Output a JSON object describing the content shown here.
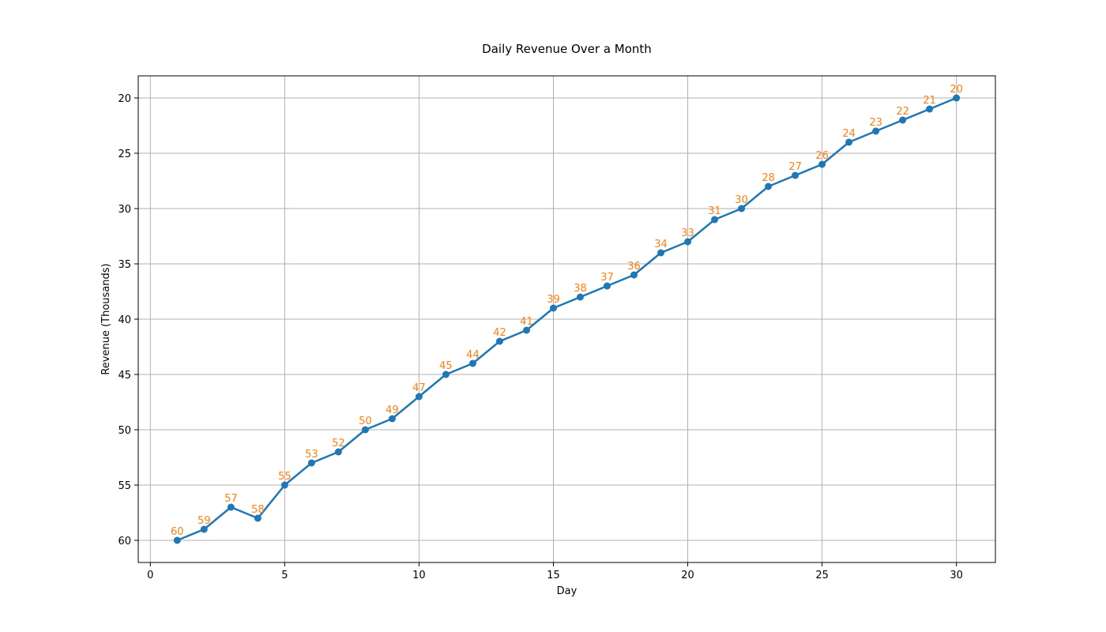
{
  "chart_data": {
    "type": "line",
    "title": "Daily Revenue Over a Month",
    "xlabel": "Day",
    "ylabel": "Revenue (Thousands)",
    "x": [
      1,
      2,
      3,
      4,
      5,
      6,
      7,
      8,
      9,
      10,
      11,
      12,
      13,
      14,
      15,
      16,
      17,
      18,
      19,
      20,
      21,
      22,
      23,
      24,
      25,
      26,
      27,
      28,
      29,
      30
    ],
    "series": [
      {
        "values": [
          60,
          59,
          57,
          58,
          55,
          53,
          52,
          50,
          49,
          47,
          45,
          44,
          42,
          41,
          39,
          38,
          37,
          36,
          34,
          33,
          31,
          30,
          28,
          27,
          26,
          24,
          23,
          22,
          21,
          20
        ]
      }
    ],
    "xlim": [
      -0.45,
      31.45
    ],
    "ylim": [
      62,
      18
    ],
    "y_inverted": true,
    "xticks": [
      "0",
      "5",
      "10",
      "15",
      "20",
      "25",
      "30"
    ],
    "yticks": [
      "20",
      "25",
      "30",
      "35",
      "40",
      "45",
      "50",
      "55",
      "60"
    ],
    "grid": true,
    "data_labels": true,
    "colors": {
      "line": "#1f77b4",
      "label": "#ff7f0e",
      "grid": "#b0b0b0"
    }
  }
}
